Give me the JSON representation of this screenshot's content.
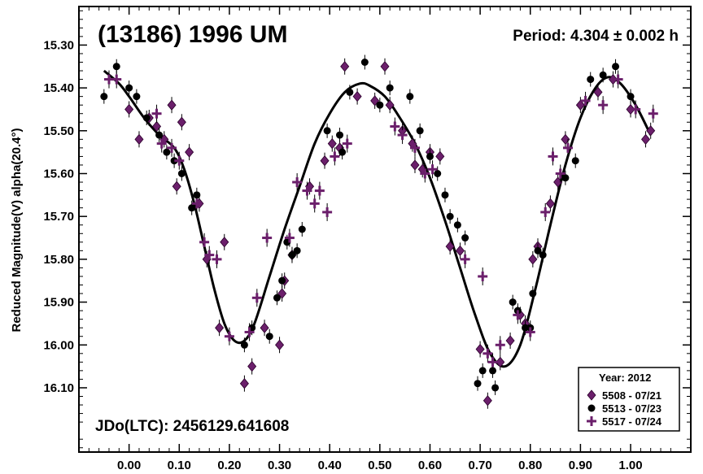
{
  "chart_data": {
    "type": "scatter",
    "title": "(13186) 1996 UM",
    "period_label": "Period: 4.304 ± 0.002 h",
    "epoch_label": "JDo(LTC): 2456129.641608",
    "xlabel": "",
    "ylabel": "Reduced Magnitude(V) alpha(20.4°)",
    "xlim": [
      -0.1,
      1.12
    ],
    "ylim": [
      15.21,
      16.25
    ],
    "y_inverted": true,
    "x_ticks": [
      0.0,
      0.1,
      0.2,
      0.3,
      0.4,
      0.5,
      0.6,
      0.7,
      0.8,
      0.9,
      1.0
    ],
    "x_tick_labels": [
      "0.00",
      "0.10",
      "0.20",
      "0.30",
      "0.40",
      "0.50",
      "0.60",
      "0.70",
      "0.80",
      "0.90",
      "1.00"
    ],
    "y_ticks": [
      15.3,
      15.4,
      15.5,
      15.6,
      15.7,
      15.8,
      15.9,
      16.0,
      16.1
    ],
    "y_tick_labels": [
      "15.30",
      "15.40",
      "15.50",
      "15.60",
      "15.70",
      "15.80",
      "15.90",
      "16.00",
      "16.10"
    ],
    "legend": {
      "position": "bottom-right",
      "title": "Year: 2012",
      "entries": [
        {
          "label": "5508 - 07/21",
          "marker": "diamond",
          "color": "#6b1f6b"
        },
        {
          "label": "5513 - 07/23",
          "marker": "circle",
          "color": "#000000"
        },
        {
          "label": "5517 - 07/24",
          "marker": "plus",
          "color": "#6b1f6b"
        }
      ]
    },
    "fit_curve": {
      "name": "Fourier fit",
      "x": [
        -0.05,
        -0.02,
        0.0,
        0.03,
        0.06,
        0.09,
        0.11,
        0.13,
        0.15,
        0.17,
        0.19,
        0.21,
        0.23,
        0.25,
        0.28,
        0.31,
        0.34,
        0.37,
        0.4,
        0.43,
        0.46,
        0.48,
        0.51,
        0.54,
        0.57,
        0.6,
        0.63,
        0.66,
        0.69,
        0.72,
        0.75,
        0.78,
        0.81,
        0.84,
        0.87,
        0.9,
        0.93,
        0.955,
        0.98,
        1.01,
        1.04
      ],
      "y": [
        15.36,
        15.39,
        15.42,
        15.47,
        15.51,
        15.54,
        15.59,
        15.67,
        15.77,
        15.87,
        15.95,
        15.99,
        15.99,
        15.95,
        15.84,
        15.73,
        15.63,
        15.53,
        15.46,
        15.41,
        15.39,
        15.395,
        15.42,
        15.47,
        15.53,
        15.61,
        15.71,
        15.82,
        15.93,
        16.02,
        16.05,
        16.0,
        15.87,
        15.72,
        15.58,
        15.47,
        15.4,
        15.375,
        15.39,
        15.44,
        15.51
      ]
    },
    "series": [
      {
        "name": "5508 - 07/21",
        "marker": "diamond",
        "color": "#6b1f6b",
        "x": [
          0.0,
          0.02,
          0.04,
          0.055,
          0.07,
          0.085,
          0.095,
          0.105,
          0.12,
          0.14,
          0.155,
          0.18,
          0.19,
          0.23,
          0.245,
          0.27,
          0.3,
          0.305,
          0.31,
          0.325,
          0.36,
          0.39,
          0.405,
          0.42,
          0.43,
          0.455,
          0.49,
          0.51,
          0.52,
          0.545,
          0.565,
          0.57,
          0.585,
          0.6,
          0.62,
          0.64,
          0.66,
          0.7,
          0.715,
          0.74,
          0.76,
          0.78,
          0.79,
          0.805,
          0.815,
          0.84,
          0.855,
          0.87,
          0.9,
          0.935,
          0.965,
          1.0,
          1.03,
          1.04
        ],
        "y": [
          15.45,
          15.52,
          15.47,
          15.49,
          15.52,
          15.44,
          15.63,
          15.48,
          15.55,
          15.67,
          15.8,
          15.96,
          15.76,
          16.09,
          16.05,
          15.96,
          16.0,
          15.88,
          15.85,
          15.79,
          15.63,
          15.57,
          15.53,
          15.54,
          15.35,
          15.42,
          15.43,
          15.35,
          15.44,
          15.5,
          15.53,
          15.58,
          15.59,
          15.55,
          15.56,
          15.77,
          15.78,
          16.01,
          16.13,
          16.04,
          15.99,
          15.93,
          15.95,
          15.8,
          15.77,
          15.67,
          15.62,
          15.52,
          15.44,
          15.41,
          15.38,
          15.45,
          15.52,
          15.5
        ]
      },
      {
        "name": "5513 - 07/23",
        "marker": "circle",
        "color": "#000000",
        "x": [
          -0.05,
          -0.025,
          0.0,
          0.015,
          0.035,
          0.06,
          0.075,
          0.09,
          0.105,
          0.125,
          0.135,
          0.23,
          0.245,
          0.28,
          0.295,
          0.305,
          0.315,
          0.325,
          0.335,
          0.345,
          0.395,
          0.42,
          0.425,
          0.44,
          0.47,
          0.5,
          0.52,
          0.56,
          0.58,
          0.6,
          0.615,
          0.63,
          0.64,
          0.655,
          0.67,
          0.695,
          0.705,
          0.725,
          0.73,
          0.765,
          0.775,
          0.79,
          0.8,
          0.805,
          0.815,
          0.825,
          0.87,
          0.89,
          0.92,
          0.945,
          0.97,
          1.0
        ],
        "y": [
          15.42,
          15.35,
          15.4,
          15.42,
          15.47,
          15.51,
          15.55,
          15.57,
          15.6,
          15.68,
          15.65,
          16.0,
          15.96,
          15.98,
          15.89,
          15.85,
          15.76,
          15.79,
          15.78,
          15.73,
          15.5,
          15.51,
          15.55,
          15.41,
          15.34,
          15.44,
          15.4,
          15.42,
          15.5,
          15.56,
          15.6,
          15.65,
          15.7,
          15.72,
          15.75,
          16.09,
          16.06,
          16.06,
          16.1,
          15.9,
          15.92,
          15.96,
          15.96,
          15.88,
          15.78,
          15.79,
          15.61,
          15.57,
          15.38,
          15.37,
          15.35,
          15.42
        ]
      },
      {
        "name": "5517 - 07/24",
        "marker": "plus",
        "color": "#6b1f6b",
        "x": [
          -0.04,
          -0.025,
          0.055,
          0.065,
          0.085,
          0.1,
          0.135,
          0.15,
          0.16,
          0.175,
          0.2,
          0.24,
          0.255,
          0.275,
          0.32,
          0.335,
          0.355,
          0.37,
          0.38,
          0.395,
          0.41,
          0.435,
          0.53,
          0.545,
          0.57,
          0.59,
          0.605,
          0.67,
          0.705,
          0.715,
          0.725,
          0.74,
          0.775,
          0.8,
          0.83,
          0.845,
          0.86,
          0.875,
          0.91,
          0.945,
          0.975,
          1.01,
          1.045
        ],
        "y": [
          15.38,
          15.38,
          15.46,
          15.53,
          15.54,
          15.57,
          15.67,
          15.76,
          15.79,
          15.8,
          15.98,
          15.97,
          15.89,
          15.75,
          15.75,
          15.62,
          15.64,
          15.67,
          15.64,
          15.69,
          15.56,
          15.53,
          15.49,
          15.51,
          15.54,
          15.6,
          15.59,
          15.8,
          15.84,
          16.02,
          16.04,
          16.0,
          15.93,
          15.97,
          15.69,
          15.56,
          15.6,
          15.54,
          15.43,
          15.44,
          15.38,
          15.45,
          15.46
        ]
      }
    ]
  }
}
